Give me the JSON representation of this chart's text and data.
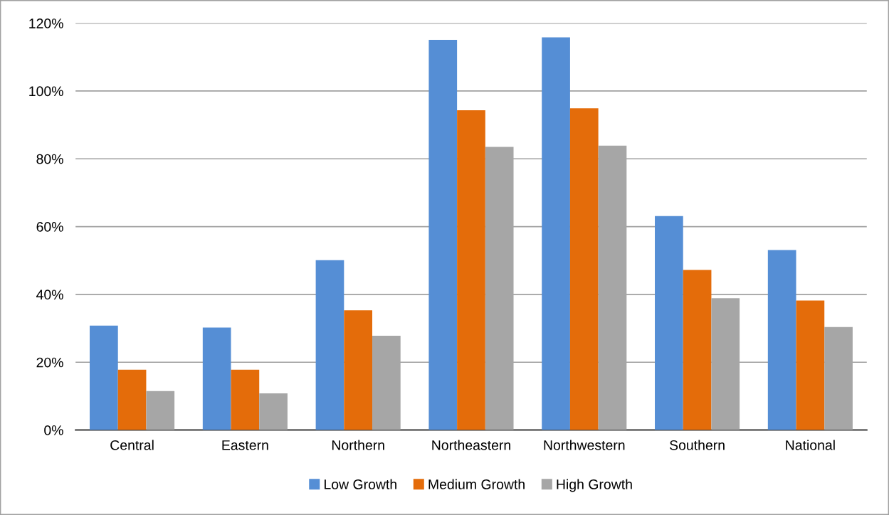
{
  "chart_data": {
    "type": "bar",
    "categories": [
      "Central",
      "Eastern",
      "Northern",
      "Northeastern",
      "Northwestern",
      "Southern",
      "National"
    ],
    "series": [
      {
        "name": "Low Growth",
        "color": "#558ed5",
        "values": [
          30.8,
          30.2,
          50.1,
          115.1,
          115.8,
          63.1,
          53.1
        ]
      },
      {
        "name": "Medium Growth",
        "color": "#e46c0a",
        "values": [
          17.8,
          17.8,
          35.3,
          94.3,
          94.9,
          47.2,
          38.2
        ]
      },
      {
        "name": "High Growth",
        "color": "#a6a6a6",
        "values": [
          11.5,
          10.8,
          27.8,
          83.5,
          83.9,
          38.9,
          30.4
        ]
      }
    ],
    "ylim": [
      0,
      120
    ],
    "yticks": [
      {
        "value": 0,
        "label": "0%"
      },
      {
        "value": 20,
        "label": "20%"
      },
      {
        "value": 40,
        "label": "40%"
      },
      {
        "value": 60,
        "label": "60%"
      },
      {
        "value": 80,
        "label": "80%"
      },
      {
        "value": 100,
        "label": "100%"
      },
      {
        "value": 120,
        "label": "120%"
      }
    ],
    "grid": "y",
    "legend": "bottom"
  }
}
